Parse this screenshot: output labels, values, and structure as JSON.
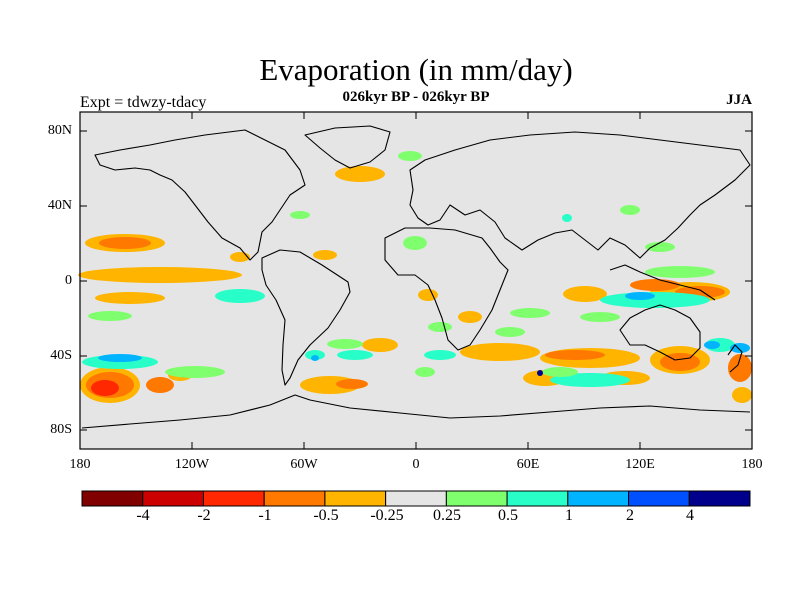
{
  "title": "Evaporation (in mm/day)",
  "subtitle": "026kyr BP - 026kyr BP",
  "experiment": "Expt = tdwzy-tdacy",
  "season": "JJA",
  "map": {
    "lat_ticks": [
      "80N",
      "40N",
      "0",
      "40S",
      "80S"
    ],
    "lon_ticks": [
      "180",
      "120W",
      "60W",
      "0",
      "60E",
      "120E",
      "180"
    ],
    "background_color": "#e5e5e5"
  },
  "colorbar": {
    "colors": [
      "#800000",
      "#cc0000",
      "#ff2800",
      "#ff7800",
      "#ffb400",
      "#e5e5e5",
      "#80ff6e",
      "#28ffc8",
      "#00b4ff",
      "#0050ff",
      "#00008c"
    ],
    "labels": [
      "-4",
      "-2",
      "-1",
      "-0.5",
      "-0.25",
      "0.25",
      "0.5",
      "1",
      "2",
      "4"
    ]
  }
}
